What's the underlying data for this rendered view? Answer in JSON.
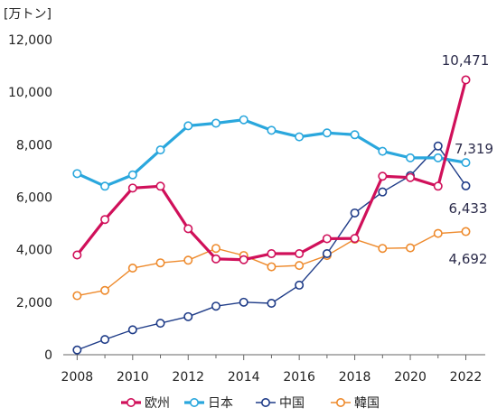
{
  "chart_data": {
    "type": "line",
    "unit_label": "[万トン]",
    "x": [
      2008,
      2009,
      2010,
      2011,
      2012,
      2013,
      2014,
      2015,
      2016,
      2017,
      2018,
      2019,
      2020,
      2021,
      2022
    ],
    "x_ticks": [
      "2008",
      "2010",
      "2012",
      "2014",
      "2016",
      "2018",
      "2020",
      "2022"
    ],
    "y_ticks": [
      "0",
      "2,000",
      "4,000",
      "6,000",
      "8,000",
      "10,000",
      "12,000"
    ],
    "ylim": [
      0,
      12000
    ],
    "xlim": [
      2007.5,
      2022.7
    ],
    "grid": false,
    "legend_position": "bottom",
    "series": [
      {
        "name": "欧州",
        "color": "#d0105a",
        "values": [
          3800,
          5150,
          6350,
          6420,
          4800,
          3650,
          3620,
          3850,
          3850,
          4420,
          4430,
          6800,
          6750,
          6420,
          10471
        ],
        "end_label": "10,471"
      },
      {
        "name": "日本",
        "color": "#2aa7dd",
        "values": [
          6900,
          6420,
          6850,
          7800,
          8720,
          8820,
          8950,
          8550,
          8300,
          8450,
          8380,
          7750,
          7500,
          7500,
          7319
        ],
        "end_label": "7,319"
      },
      {
        "name": "中国",
        "color": "#1f3c88",
        "values": [
          180,
          580,
          950,
          1200,
          1450,
          1850,
          2000,
          1960,
          2650,
          3850,
          5400,
          6200,
          6820,
          7950,
          6433
        ],
        "end_label": "6,433"
      },
      {
        "name": "韓国",
        "color": "#ee8a2c",
        "values": [
          2250,
          2450,
          3300,
          3500,
          3600,
          4050,
          3780,
          3350,
          3400,
          3780,
          4400,
          4050,
          4070,
          4620,
          4692
        ],
        "end_label": "4,692"
      }
    ]
  }
}
